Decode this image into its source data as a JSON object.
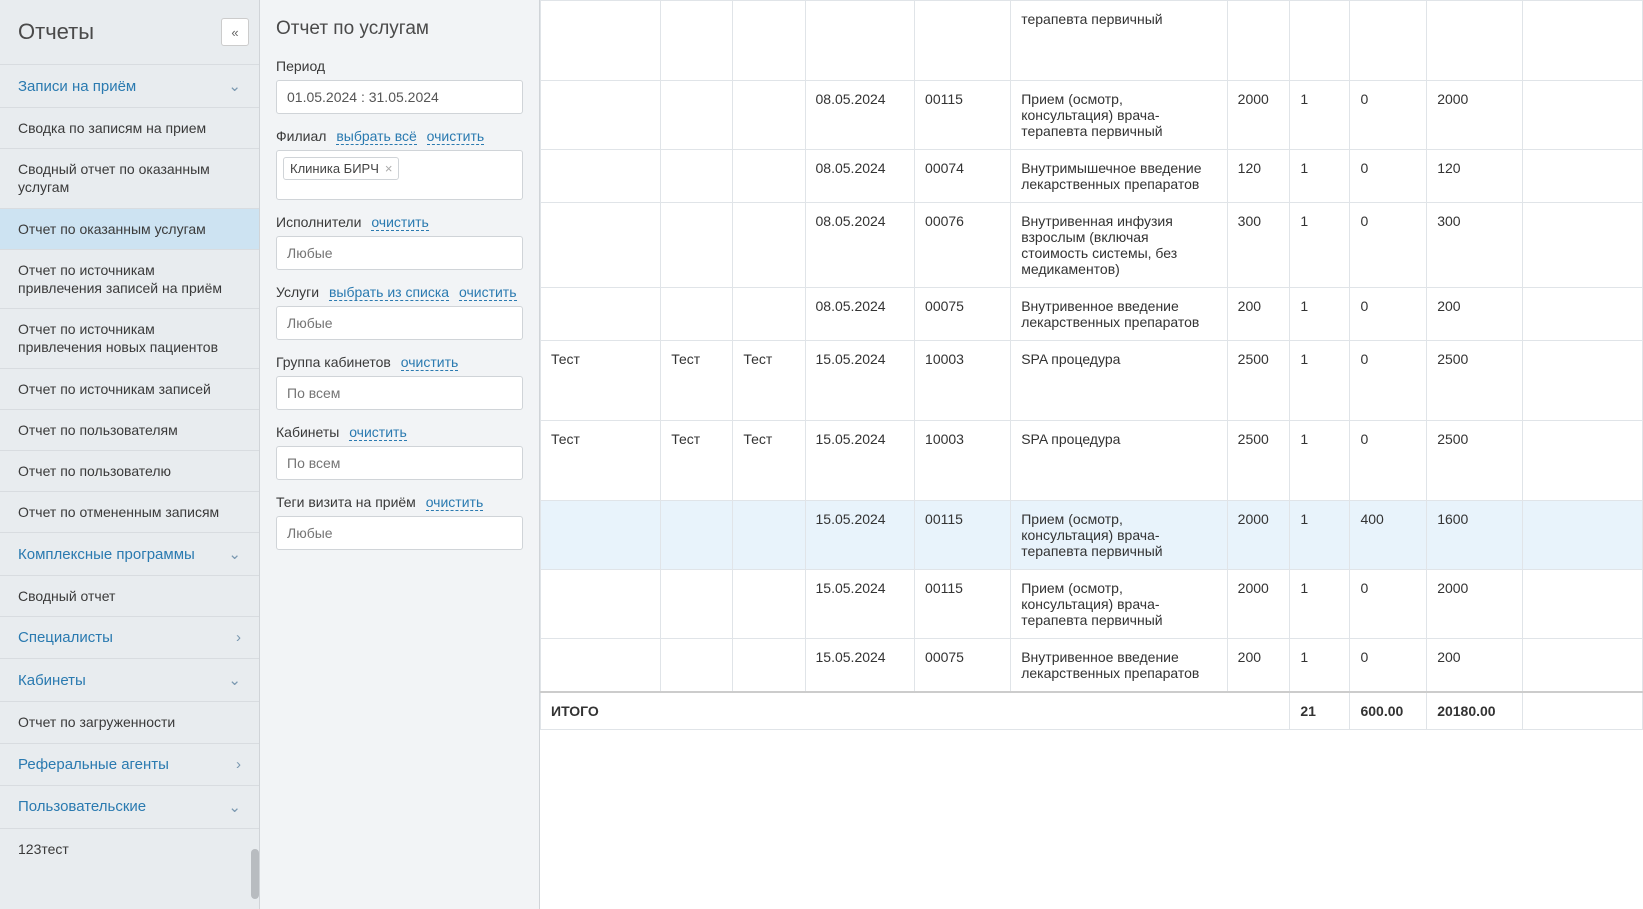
{
  "sidebar": {
    "title": "Отчеты",
    "sections": [
      {
        "label": "Записи на приём",
        "expanded": true,
        "chev": "down"
      },
      {
        "label": "Комплексные программы",
        "expanded": true,
        "chev": "down"
      },
      {
        "label": "Специалисты",
        "expanded": false,
        "chev": "right"
      },
      {
        "label": "Кабинеты",
        "expanded": true,
        "chev": "down"
      },
      {
        "label": "Реферальные агенты",
        "expanded": false,
        "chev": "right"
      },
      {
        "label": "Пользовательские",
        "expanded": true,
        "chev": "down"
      }
    ],
    "items_records": [
      "Сводка по записям на прием",
      "Сводный отчет по оказанным услугам",
      "Отчет по оказанным услугам",
      "Отчет по источникам привлечения записей на приём",
      "Отчет по источникам привлечения новых пациентов",
      "Отчет по источникам записей",
      "Отчет по пользователям",
      "Отчет по пользователю",
      "Отчет по отмененным записям"
    ],
    "items_complex": [
      "Сводный отчет"
    ],
    "items_cabinets": [
      "Отчет по загруженности"
    ],
    "items_custom": [
      "123тест"
    ],
    "active_item": "Отчет по оказанным услугам"
  },
  "filters": {
    "title": "Отчет по услугам",
    "period_label": "Период",
    "period_value": "01.05.2024 : 31.05.2024",
    "branch_label": "Филиал",
    "select_all": "выбрать всё",
    "clear": "очистить",
    "select_from_list": "выбрать из списка",
    "branch_tag": "Клиника БИРЧ",
    "executors_label": "Исполнители",
    "executors_placeholder": "Любые",
    "services_label": "Услуги",
    "services_placeholder": "Любые",
    "cabinet_group_label": "Группа кабинетов",
    "cabinet_group_placeholder": "По всем",
    "cabinets_label": "Кабинеты",
    "cabinets_placeholder": "По всем",
    "visit_tags_label": "Теги визита на приём",
    "visit_tags_placeholder": "Любые"
  },
  "table": {
    "rows": [
      {
        "c1": "",
        "c2": "",
        "c3": "",
        "date": "",
        "code": "",
        "svc": "терапевта первичный",
        "p": "",
        "q": "",
        "d": "",
        "t": "",
        "highlight": false
      },
      {
        "c1": "",
        "c2": "",
        "c3": "",
        "date": "08.05.2024",
        "code": "00115",
        "svc": "Прием (осмотр, консультация) врача-терапевта первичный",
        "p": "2000",
        "q": "1",
        "d": "0",
        "t": "2000",
        "highlight": false
      },
      {
        "c1": "",
        "c2": "",
        "c3": "",
        "date": "08.05.2024",
        "code": "00074",
        "svc": "Внутримышечное введение лекарственных препаратов",
        "p": "120",
        "q": "1",
        "d": "0",
        "t": "120",
        "highlight": false
      },
      {
        "c1": "",
        "c2": "",
        "c3": "",
        "date": "08.05.2024",
        "code": "00076",
        "svc": "Внутривенная инфузия взрослым (включая стоимость системы, без медикаментов)",
        "p": "300",
        "q": "1",
        "d": "0",
        "t": "300",
        "highlight": false
      },
      {
        "c1": "",
        "c2": "",
        "c3": "",
        "date": "08.05.2024",
        "code": "00075",
        "svc": "Внутривенное введение лекарственных препаратов",
        "p": "200",
        "q": "1",
        "d": "0",
        "t": "200",
        "highlight": false
      },
      {
        "c1": "Тест",
        "c2": "Тест",
        "c3": "Тест",
        "date": "15.05.2024",
        "code": "10003",
        "svc": "SPA процедура",
        "p": "2500",
        "q": "1",
        "d": "0",
        "t": "2500",
        "highlight": false
      },
      {
        "c1": "Тест",
        "c2": "Тест",
        "c3": "Тест",
        "date": "15.05.2024",
        "code": "10003",
        "svc": "SPA процедура",
        "p": "2500",
        "q": "1",
        "d": "0",
        "t": "2500",
        "highlight": false
      },
      {
        "c1": "",
        "c2": "",
        "c3": "",
        "date": "15.05.2024",
        "code": "00115",
        "svc": "Прием (осмотр, консультация) врача-терапевта первичный",
        "p": "2000",
        "q": "1",
        "d": "400",
        "t": "1600",
        "highlight": true
      },
      {
        "c1": "",
        "c2": "",
        "c3": "",
        "date": "15.05.2024",
        "code": "00115",
        "svc": "Прием (осмотр, консультация) врача-терапевта первичный",
        "p": "2000",
        "q": "1",
        "d": "0",
        "t": "2000",
        "highlight": false
      },
      {
        "c1": "",
        "c2": "",
        "c3": "",
        "date": "15.05.2024",
        "code": "00075",
        "svc": "Внутривенное введение лекарственных препаратов",
        "p": "200",
        "q": "1",
        "d": "0",
        "t": "200",
        "highlight": false
      }
    ],
    "total_label": "ИТОГО",
    "total_q": "21",
    "total_d": "600.00",
    "total_t": "20180.00",
    "col_widths": {
      "c1": 100,
      "c2": 60,
      "c3": 60,
      "date": 80,
      "code": 80,
      "svc": 180,
      "p": 50,
      "q": 50,
      "d": 60,
      "t": 60,
      "last": 100
    },
    "row_min_height": 80
  },
  "colors": {
    "sidebar_bg": "#e8ecef",
    "filter_bg": "#f2f4f6",
    "active_bg": "#cde3f2",
    "highlight_bg": "#e8f3fb",
    "link_color": "#2a7ab0",
    "border": "#d0d4d8",
    "table_border": "#e0e4e8",
    "text": "#333333"
  }
}
